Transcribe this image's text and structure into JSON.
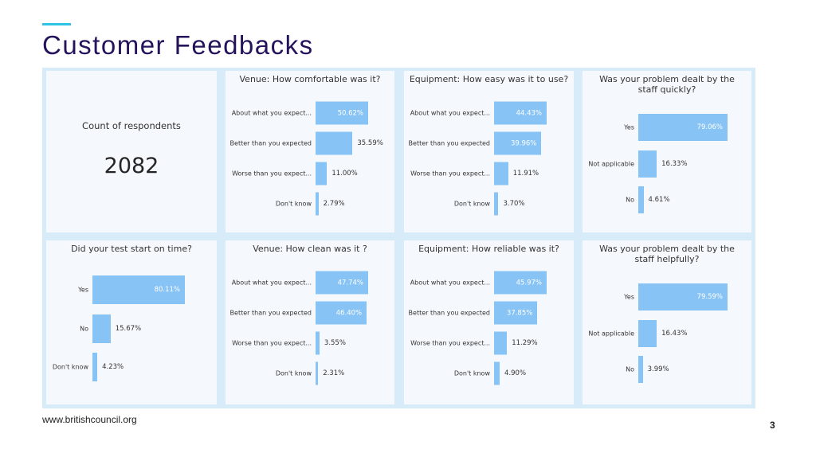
{
  "slide": {
    "title": "Customer Feedbacks",
    "footer": "www.britishcouncil.org",
    "page_number": "3",
    "title_color": "#25145c",
    "accent_color": "#2ec4e6",
    "bar_color": "#87c3f5"
  },
  "kpi": {
    "label": "Count of respondents",
    "value": "2082"
  },
  "chart_data": [
    {
      "type": "bar",
      "title": "Venue: How comfortable was it?",
      "categories": [
        "About what you expect...",
        "Better than you expected",
        "Worse than you expect...",
        "Don't know"
      ],
      "values": [
        50.62,
        35.59,
        11.0,
        2.79
      ],
      "labels": [
        "50.62%",
        "35.59%",
        "11.00%",
        "2.79%"
      ]
    },
    {
      "type": "bar",
      "title": "Equipment: How easy was it to use?",
      "categories": [
        "About what you expect...",
        "Better than you expected",
        "Worse than you expect...",
        "Don't know"
      ],
      "values": [
        44.43,
        39.96,
        11.91,
        3.7
      ],
      "labels": [
        "44.43%",
        "39.96%",
        "11.91%",
        "3.70%"
      ]
    },
    {
      "type": "bar",
      "title": "Was your problem dealt by the staff quickly?",
      "categories": [
        "Yes",
        "Not applicable",
        "No"
      ],
      "values": [
        79.06,
        16.33,
        4.61
      ],
      "labels": [
        "79.06%",
        "16.33%",
        "4.61%"
      ]
    },
    {
      "type": "bar",
      "title": "Did your test start on time?",
      "categories": [
        "Yes",
        "No",
        "Don't know"
      ],
      "values": [
        80.11,
        15.67,
        4.23
      ],
      "labels": [
        "80.11%",
        "15.67%",
        "4.23%"
      ]
    },
    {
      "type": "bar",
      "title": "Venue: How clean was it ?",
      "categories": [
        "About what you expect...",
        "Better than you expected",
        "Worse than you expect...",
        "Don't know"
      ],
      "values": [
        47.74,
        46.4,
        3.55,
        2.31
      ],
      "labels": [
        "47.74%",
        "46.40%",
        "3.55%",
        "2.31%"
      ]
    },
    {
      "type": "bar",
      "title": "Equipment: How reliable was it?",
      "categories": [
        "About what you expect...",
        "Better than you expected",
        "Worse than you expect...",
        "Don't know"
      ],
      "values": [
        45.97,
        37.85,
        11.29,
        4.9
      ],
      "labels": [
        "45.97%",
        "37.85%",
        "11.29%",
        "4.90%"
      ]
    },
    {
      "type": "bar",
      "title": "Was your problem dealt by the staff helpfully?",
      "categories": [
        "Yes",
        "Not applicable",
        "No"
      ],
      "values": [
        79.59,
        16.43,
        3.99
      ],
      "labels": [
        "79.59%",
        "16.43%",
        "3.99%"
      ]
    }
  ]
}
